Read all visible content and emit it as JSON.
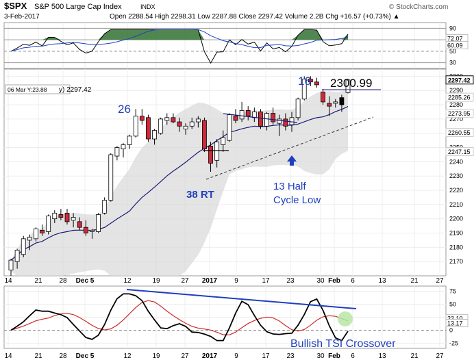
{
  "header": {
    "symbol": "$SPX",
    "name": "S&P 500 Large Cap Index",
    "exchange": "INDX",
    "date": "3-Feb-2017",
    "ohlc": "Open 2288.54  High 2298.31  Low 2287.88  Close 2297.42  Volume 2.2B  Chg +16.57 (+0.73%) ▲",
    "source": "© StockCharts.com"
  },
  "colors": {
    "up": "#ffffff",
    "down": "#cc2a3a",
    "ma": "#1a1a7a",
    "band": "#d9d9d9",
    "annotation": "#1f3fbf",
    "trend": "#1a1a7a",
    "tsi": "#000000",
    "tsi_signal": "#cc2a2a",
    "rsi_fill": "#3d7a3d",
    "highlight": "#b8e6a6"
  },
  "annotations": {
    "cycle26": "26",
    "cycle16": "16",
    "peak": "2300.99",
    "rt": "38 RT",
    "half1": "13 Half",
    "half2": "Cycle Low",
    "tsi_note": "Bullish TSI Crossover",
    "ma_readout": "06 Mar Y:23.88",
    "ma_value": "y) 2297.42"
  },
  "chart_data": [
    {
      "type": "line",
      "panel": "RSI",
      "y_ticks": [
        90,
        70,
        50,
        30
      ],
      "value_labels": [
        "72.07",
        "60.09"
      ],
      "lines": [
        90,
        70,
        50,
        30
      ],
      "series": []
    },
    {
      "type": "candlestick",
      "panel": "price",
      "title": "$SPX S&P 500 Large Cap Index INDX",
      "ylim": [
        2160,
        2305
      ],
      "y_ticks": [
        2300,
        2290,
        2280,
        2270,
        2260,
        2250,
        2240,
        2230,
        2220,
        2210,
        2200,
        2190,
        2180,
        2170
      ],
      "x_ticks": [
        "14",
        "21",
        "28",
        "Dec 5",
        "12",
        "19",
        "27",
        "2017",
        "9",
        "17",
        "23",
        "30",
        "Feb",
        "6",
        "13",
        "21",
        "27"
      ],
      "right_value_labels": [
        "2297.42",
        "2285.26",
        "2273.95",
        "2260.55",
        "2247.15"
      ],
      "candles": [
        {
          "o": 2164,
          "h": 2172,
          "l": 2160,
          "c": 2171
        },
        {
          "o": 2170,
          "h": 2179,
          "l": 2165,
          "c": 2178
        },
        {
          "o": 2175,
          "h": 2188,
          "l": 2173,
          "c": 2186
        },
        {
          "o": 2185,
          "h": 2189,
          "l": 2178,
          "c": 2187
        },
        {
          "o": 2186,
          "h": 2194,
          "l": 2184,
          "c": 2193
        },
        {
          "o": 2192,
          "h": 2196,
          "l": 2188,
          "c": 2190
        },
        {
          "o": 2191,
          "h": 2203,
          "l": 2189,
          "c": 2202
        },
        {
          "o": 2200,
          "h": 2206,
          "l": 2197,
          "c": 2204
        },
        {
          "o": 2203,
          "h": 2207,
          "l": 2199,
          "c": 2201
        },
        {
          "o": 2204,
          "h": 2207,
          "l": 2196,
          "c": 2198
        },
        {
          "o": 2199,
          "h": 2204,
          "l": 2194,
          "c": 2201
        },
        {
          "o": 2198,
          "h": 2201,
          "l": 2192,
          "c": 2194
        },
        {
          "o": 2194,
          "h": 2199,
          "l": 2188,
          "c": 2190
        },
        {
          "o": 2191,
          "h": 2193,
          "l": 2186,
          "c": 2192
        },
        {
          "o": 2191,
          "h": 2204,
          "l": 2190,
          "c": 2203
        },
        {
          "o": 2204,
          "h": 2215,
          "l": 2203,
          "c": 2213
        },
        {
          "o": 2213,
          "h": 2246,
          "l": 2212,
          "c": 2245
        },
        {
          "o": 2244,
          "h": 2251,
          "l": 2241,
          "c": 2250
        },
        {
          "o": 2249,
          "h": 2253,
          "l": 2243,
          "c": 2252
        },
        {
          "o": 2252,
          "h": 2259,
          "l": 2249,
          "c": 2258
        },
        {
          "o": 2258,
          "h": 2277,
          "l": 2257,
          "c": 2272
        },
        {
          "o": 2272,
          "h": 2277,
          "l": 2266,
          "c": 2269
        },
        {
          "o": 2271,
          "h": 2273,
          "l": 2254,
          "c": 2256
        },
        {
          "o": 2256,
          "h": 2263,
          "l": 2252,
          "c": 2262
        },
        {
          "o": 2260,
          "h": 2271,
          "l": 2259,
          "c": 2270
        },
        {
          "o": 2269,
          "h": 2274,
          "l": 2266,
          "c": 2271
        },
        {
          "o": 2271,
          "h": 2274,
          "l": 2267,
          "c": 2268
        },
        {
          "o": 2268,
          "h": 2271,
          "l": 2261,
          "c": 2265
        },
        {
          "o": 2263,
          "h": 2267,
          "l": 2259,
          "c": 2265
        },
        {
          "o": 2265,
          "h": 2271,
          "l": 2263,
          "c": 2268
        },
        {
          "o": 2268,
          "h": 2272,
          "l": 2264,
          "c": 2270
        },
        {
          "o": 2269,
          "h": 2271,
          "l": 2247,
          "c": 2249
        },
        {
          "o": 2251,
          "h": 2254,
          "l": 2233,
          "c": 2239
        },
        {
          "o": 2241,
          "h": 2256,
          "l": 2236,
          "c": 2254
        },
        {
          "o": 2252,
          "h": 2262,
          "l": 2247,
          "c": 2257
        },
        {
          "o": 2255,
          "h": 2274,
          "l": 2254,
          "c": 2273
        },
        {
          "o": 2272,
          "h": 2277,
          "l": 2267,
          "c": 2269
        },
        {
          "o": 2270,
          "h": 2282,
          "l": 2268,
          "c": 2276
        },
        {
          "o": 2276,
          "h": 2279,
          "l": 2269,
          "c": 2272
        },
        {
          "o": 2271,
          "h": 2278,
          "l": 2268,
          "c": 2275
        },
        {
          "o": 2275,
          "h": 2277,
          "l": 2263,
          "c": 2265
        },
        {
          "o": 2265,
          "h": 2275,
          "l": 2262,
          "c": 2274
        },
        {
          "o": 2274,
          "h": 2278,
          "l": 2266,
          "c": 2268
        },
        {
          "o": 2267,
          "h": 2273,
          "l": 2258,
          "c": 2270
        },
        {
          "o": 2270,
          "h": 2274,
          "l": 2262,
          "c": 2265
        },
        {
          "o": 2266,
          "h": 2275,
          "l": 2261,
          "c": 2271
        },
        {
          "o": 2271,
          "h": 2285,
          "l": 2269,
          "c": 2284
        },
        {
          "o": 2284,
          "h": 2300,
          "l": 2283,
          "c": 2298
        },
        {
          "o": 2298,
          "h": 2300,
          "l": 2293,
          "c": 2296
        },
        {
          "o": 2296,
          "h": 2299,
          "l": 2292,
          "c": 2294
        },
        {
          "o": 2289,
          "h": 2291,
          "l": 2280,
          "c": 2282
        },
        {
          "o": 2281,
          "h": 2286,
          "l": 2272,
          "c": 2279
        },
        {
          "o": 2281,
          "h": 2284,
          "l": 2278,
          "c": 2282
        },
        {
          "o": 2280,
          "h": 2287,
          "l": 2275,
          "c": 2285
        },
        {
          "o": 2288.54,
          "h": 2298.31,
          "l": 2287.88,
          "c": 2297.42
        }
      ]
    },
    {
      "type": "line",
      "panel": "TSI",
      "y_ticks": [
        75,
        50,
        25,
        0,
        -25
      ],
      "value_labels": [
        "22.10",
        "13.17"
      ],
      "series": []
    }
  ]
}
